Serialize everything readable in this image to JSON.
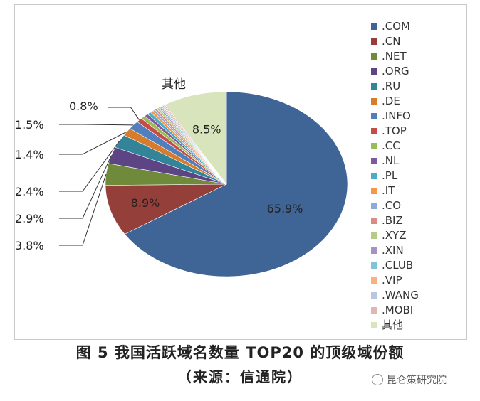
{
  "figure": {
    "caption": "图 5  我国活跃域名数量 TOP20 的顶级域份额",
    "source": "（来源：信通院）"
  },
  "watermark": "昆仑策研究院",
  "chart_data": {
    "type": "pie",
    "categories": [
      ".COM",
      ".CN",
      ".NET",
      ".ORG",
      ".RU",
      ".DE",
      ".INFO",
      ".TOP",
      ".CC",
      ".NL",
      ".PL",
      ".IT",
      ".CO",
      ".BIZ",
      ".XYZ",
      ".XIN",
      ".CLUB",
      ".VIP",
      ".WANG",
      ".MOBI",
      "其他"
    ],
    "values": [
      65.9,
      8.9,
      3.8,
      2.9,
      2.4,
      1.4,
      1.5,
      0.8,
      0.6,
      0.5,
      0.5,
      0.4,
      0.3,
      0.3,
      0.3,
      0.2,
      0.2,
      0.2,
      0.2,
      0.2,
      8.5
    ],
    "colors": [
      "#3f6597",
      "#953f3b",
      "#6f8a3a",
      "#5c4485",
      "#338499",
      "#d77b2c",
      "#4f7fbf",
      "#c44d47",
      "#9bbb59",
      "#7d5aa0",
      "#4bacc6",
      "#f79646",
      "#8eaad8",
      "#d98b88",
      "#b4cc86",
      "#a592c2",
      "#7fc4d9",
      "#fab07f",
      "#b9c6e0",
      "#e0b5b4",
      "#d8e4bc"
    ],
    "slice_labels": [
      {
        "index": 0,
        "text": "65.9%"
      },
      {
        "index": 1,
        "text": "8.9%"
      },
      {
        "index": 2,
        "text": "3.8%"
      },
      {
        "index": 3,
        "text": "2.9%"
      },
      {
        "index": 4,
        "text": "2.4%"
      },
      {
        "index": 5,
        "text": "1.4%"
      },
      {
        "index": 6,
        "text": "1.5%"
      },
      {
        "index": 7,
        "text": "0.8%"
      },
      {
        "index": 20,
        "text": "8.5%"
      }
    ],
    "other_label": "其他",
    "legend_position": "right"
  }
}
